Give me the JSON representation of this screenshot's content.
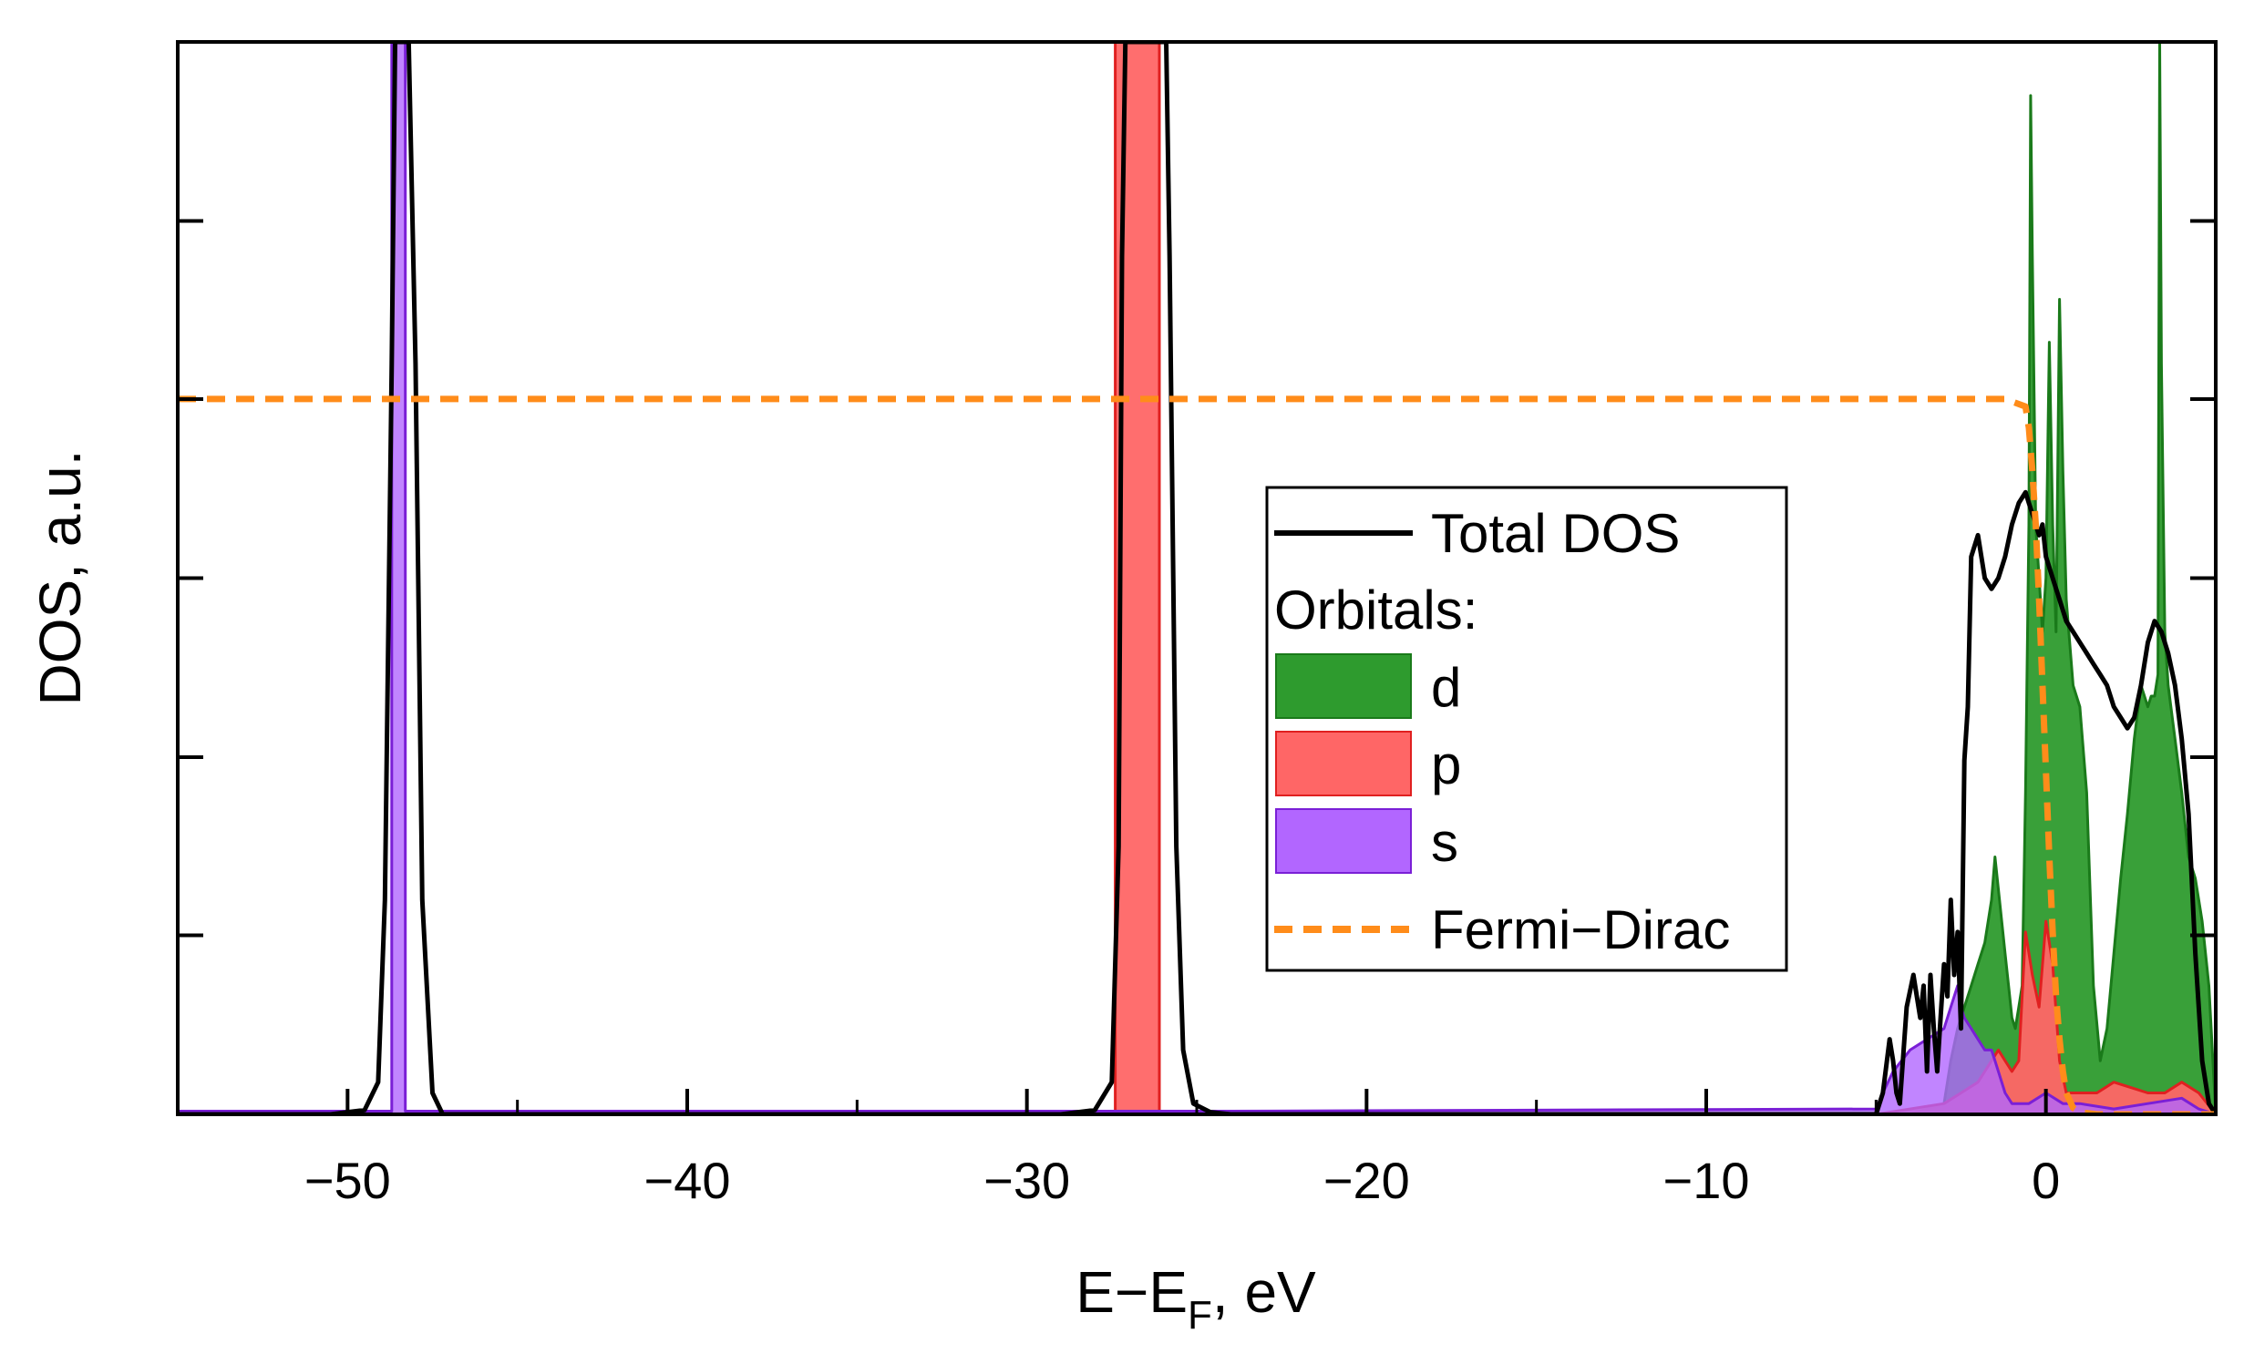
{
  "chart_data": {
    "type": "area",
    "title": "",
    "xlabel": "E−E",
    "xlabel_subscript": "F",
    "xlabel_suffix": ", eV",
    "ylabel": "DOS, a.u.",
    "xlim": [
      -55,
      5
    ],
    "ylim": [
      0,
      1.0
    ],
    "x_ticks": [
      -50,
      -40,
      -30,
      -20,
      -10,
      0
    ],
    "x_tick_labels": [
      "−50",
      "−40",
      "−30",
      "−20",
      "−10",
      "0"
    ],
    "y_tick_values": [
      0,
      0.167,
      0.333,
      0.5,
      0.667,
      0.833
    ],
    "grid": false,
    "legend_position": "center-right",
    "legend": {
      "total_label": "Total DOS",
      "group_label": "Orbitals:",
      "d_label": "d",
      "p_label": "p",
      "s_label": "s",
      "fd_label": "Fermi−Dirac"
    },
    "colors": {
      "total": "#000000",
      "d": "#2e9b2e",
      "d_edge": "#1a7a1a",
      "p": "#ff6666",
      "p_edge": "#e02020",
      "s": "#b266ff",
      "s_edge": "#7a1fd6",
      "fd": "#ff8c1a"
    },
    "series": [
      {
        "name": "Total DOS",
        "style": "line",
        "x": [
          -55,
          -50.5,
          -49.5,
          -49.1,
          -48.9,
          -48.7,
          -48.6,
          -48.5,
          -48.4,
          -48.3,
          -48.2,
          -48.0,
          -47.8,
          -47.5,
          -47.2,
          -29,
          -28.0,
          -27.5,
          -27.3,
          -27.2,
          -27.1,
          -25.9,
          -25.8,
          -25.6,
          -25.4,
          -25.1,
          -24.6,
          -24.0,
          -5.0,
          -4.8,
          -4.6,
          -4.5,
          -4.4,
          -4.3,
          -4.1,
          -3.9,
          -3.7,
          -3.6,
          -3.5,
          -3.4,
          -3.3,
          -3.2,
          -3.1,
          -3.0,
          -2.9,
          -2.8,
          -2.7,
          -2.6,
          -2.5,
          -2.4,
          -2.3,
          -2.2,
          -2.0,
          -1.8,
          -1.6,
          -1.4,
          -1.2,
          -1.0,
          -0.8,
          -0.6,
          -0.5,
          -0.4,
          -0.3,
          -0.2,
          -0.1,
          0,
          0.2,
          0.4,
          0.6,
          0.8,
          1.0,
          1.2,
          1.4,
          1.6,
          1.8,
          2.0,
          2.2,
          2.4,
          2.6,
          2.8,
          3.0,
          3.2,
          3.4,
          3.6,
          3.8,
          4.0,
          4.2,
          4.4,
          4.6,
          4.8,
          5.0
        ],
        "y": [
          0,
          0,
          0.004,
          0.03,
          0.2,
          0.7,
          1.0,
          1.0,
          1.0,
          1.0,
          1.0,
          0.7,
          0.2,
          0.02,
          0,
          0,
          0.004,
          0.03,
          0.25,
          0.8,
          1.0,
          1.0,
          0.8,
          0.25,
          0.06,
          0.01,
          0.002,
          0,
          0,
          0.02,
          0.07,
          0.05,
          0.02,
          0.01,
          0.1,
          0.13,
          0.09,
          0.12,
          0.04,
          0.13,
          0.08,
          0.04,
          0.09,
          0.14,
          0.11,
          0.2,
          0.13,
          0.17,
          0.08,
          0.33,
          0.38,
          0.52,
          0.54,
          0.5,
          0.49,
          0.5,
          0.52,
          0.55,
          0.57,
          0.58,
          0.57,
          0.56,
          0.55,
          0.54,
          0.55,
          0.52,
          0.5,
          0.48,
          0.46,
          0.45,
          0.44,
          0.43,
          0.42,
          0.41,
          0.4,
          0.38,
          0.37,
          0.36,
          0.37,
          0.4,
          0.44,
          0.46,
          0.45,
          0.43,
          0.4,
          0.35,
          0.28,
          0.15,
          0.05,
          0.01,
          0
        ]
      },
      {
        "name": "d",
        "style": "fill",
        "x": [
          -5.0,
          -4.0,
          -3.0,
          -2.8,
          -2.6,
          -2.4,
          -2.2,
          -2.0,
          -1.8,
          -1.6,
          -1.5,
          -1.4,
          -1.3,
          -1.2,
          -1.1,
          -1.0,
          -0.9,
          -0.8,
          -0.7,
          -0.6,
          -0.5,
          -0.45,
          -0.4,
          -0.3,
          -0.2,
          -0.1,
          0,
          0.1,
          0.2,
          0.3,
          0.4,
          0.5,
          0.6,
          0.8,
          1.0,
          1.2,
          1.4,
          1.6,
          1.8,
          2.0,
          2.2,
          2.4,
          2.6,
          2.8,
          3.0,
          3.1,
          3.2,
          3.3,
          3.35,
          3.4,
          3.5,
          3.6,
          3.8,
          4.0,
          4.2,
          4.4,
          4.6,
          4.8,
          5.0
        ],
        "y": [
          0,
          0,
          0.01,
          0.05,
          0.08,
          0.1,
          0.12,
          0.14,
          0.16,
          0.2,
          0.24,
          0.21,
          0.18,
          0.15,
          0.12,
          0.09,
          0.08,
          0.1,
          0.12,
          0.3,
          0.55,
          0.95,
          0.8,
          0.55,
          0.5,
          0.45,
          0.5,
          0.72,
          0.55,
          0.45,
          0.76,
          0.6,
          0.48,
          0.4,
          0.38,
          0.3,
          0.12,
          0.05,
          0.08,
          0.15,
          0.22,
          0.28,
          0.35,
          0.4,
          0.38,
          0.39,
          0.39,
          0.41,
          1.0,
          0.7,
          0.45,
          0.4,
          0.35,
          0.3,
          0.24,
          0.22,
          0.18,
          0.12,
          0
        ]
      },
      {
        "name": "p",
        "style": "fill",
        "x": [
          -27.4,
          -27.4,
          -26.1,
          -26.1,
          -5.0,
          -3.0,
          -2.5,
          -2.0,
          -1.8,
          -1.6,
          -1.4,
          -1.2,
          -1.0,
          -0.8,
          -0.6,
          -0.4,
          -0.2,
          0,
          0.2,
          0.4,
          0.6,
          0.8,
          1.0,
          1.5,
          2.0,
          2.5,
          3.0,
          3.5,
          4.0,
          4.5,
          5.0
        ],
        "y": [
          0,
          1.0,
          1.0,
          0,
          0,
          0.01,
          0.02,
          0.03,
          0.04,
          0.05,
          0.06,
          0.05,
          0.04,
          0.05,
          0.17,
          0.13,
          0.1,
          0.18,
          0.14,
          0.05,
          0.02,
          0.02,
          0.02,
          0.02,
          0.03,
          0.025,
          0.02,
          0.02,
          0.03,
          0.02,
          0
        ]
      },
      {
        "name": "s",
        "style": "fill",
        "x": [
          -55,
          -48.7,
          -48.7,
          -48.3,
          -48.3,
          -24.0,
          -5.0,
          -4.8,
          -4.5,
          -4.0,
          -3.5,
          -3.0,
          -2.8,
          -2.6,
          -2.5,
          -2.4,
          -2.2,
          -2.0,
          -1.8,
          -1.6,
          -1.5,
          -1.4,
          -1.2,
          -1.0,
          -0.5,
          0,
          0.5,
          1.0,
          2.0,
          3.0,
          4.0,
          4.5,
          5.0
        ],
        "y": [
          0.003,
          0.003,
          1.0,
          1.0,
          0.003,
          0.003,
          0.005,
          0.02,
          0.04,
          0.06,
          0.07,
          0.08,
          0.1,
          0.12,
          0.1,
          0.09,
          0.08,
          0.07,
          0.06,
          0.06,
          0.05,
          0.04,
          0.02,
          0.01,
          0.01,
          0.02,
          0.01,
          0.01,
          0.005,
          0.01,
          0.015,
          0.005,
          0
        ]
      },
      {
        "name": "Fermi−Dirac",
        "style": "dashed",
        "x": [
          -55,
          -1.2,
          -0.6,
          -0.5,
          -0.4,
          -0.3,
          -0.2,
          -0.1,
          0,
          0.1,
          0.2,
          0.3,
          0.4,
          0.5,
          0.6,
          0.8,
          1.0,
          1.5,
          5.0
        ],
        "y": [
          0.667,
          0.667,
          0.66,
          0.64,
          0.6,
          0.55,
          0.48,
          0.4,
          0.32,
          0.24,
          0.17,
          0.11,
          0.07,
          0.04,
          0.02,
          0.006,
          0.002,
          0,
          0
        ]
      }
    ]
  }
}
